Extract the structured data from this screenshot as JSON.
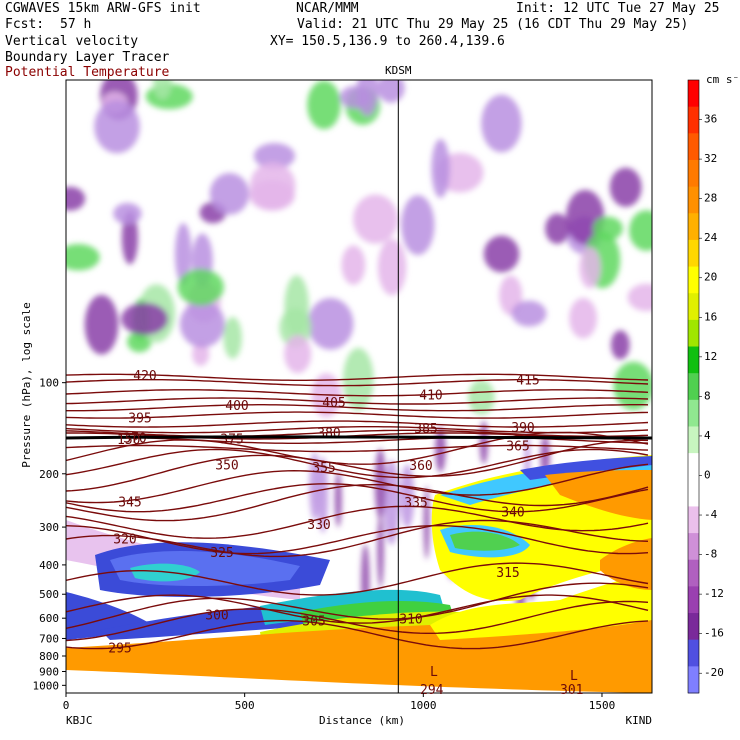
{
  "header": {
    "model": "CGWAVES 15km ARW-GFS init",
    "org": "NCAR/MMM",
    "init": "Init: 12 UTC Tue 27 May 25",
    "fcst_label": "Fcst:",
    "fcst_value": "57 h",
    "valid": "Valid: 21 UTC Thu 29 May 25 (16 CDT Thu 29 May 25)",
    "field1": "Vertical velocity",
    "xy": "XY= 150.5,136.9 to 260.4,139.6",
    "field2": "Boundary Layer Tracer",
    "field3": "Potential Temperature",
    "colors": {
      "field3": "#8b0000"
    }
  },
  "chart_data": {
    "type": "heatmap",
    "title": "Vertical velocity",
    "station_marker": "KDSM",
    "xlabel": "Distance (km)",
    "ylabel": "Pressure (hPa), log scale",
    "x_ticks": [
      "0",
      "500",
      "1000",
      "1500"
    ],
    "x_tick_values": [
      0,
      500,
      1000,
      1500
    ],
    "xlim": [
      0,
      1640
    ],
    "x_end_labels": [
      "KBJC",
      "KIND"
    ],
    "station_x": 930,
    "y_ticks": [
      "100",
      "200",
      "300",
      "400",
      "500",
      "600",
      "700",
      "800",
      "900",
      "1000"
    ],
    "y_tick_values": [
      100,
      200,
      300,
      400,
      500,
      600,
      700,
      800,
      900,
      1000
    ],
    "ylim": [
      1060,
      10
    ],
    "y_scale": "log",
    "colorbar": {
      "unit": "cm s⁻¹",
      "tick_labels": [
        "36",
        "32",
        "28",
        "24",
        "20",
        "16",
        "12",
        "8",
        "4",
        "0",
        "-4",
        "-8",
        "-12",
        "-16",
        "-20"
      ],
      "tick_values": [
        36,
        32,
        28,
        24,
        20,
        16,
        12,
        8,
        4,
        0,
        -4,
        -8,
        -12,
        -16,
        -20
      ],
      "range": [
        -22,
        40
      ],
      "colors": [
        "#7f7fff",
        "#5050e0",
        "#7a2a9a",
        "#9a40b0",
        "#b060c0",
        "#cf90d8",
        "#ebc0ec",
        "#ffffff",
        "#ffffff",
        "#c8f5c0",
        "#90e890",
        "#50d050",
        "#10c010",
        "#a0e600",
        "#e0f000",
        "#ffff00",
        "#ffd700",
        "#ffb000",
        "#ff9000",
        "#ff7a00",
        "#ff5a00",
        "#ff3000",
        "#ff0000"
      ]
    },
    "theta_contours": [
      {
        "label": "295",
        "p": 680
      },
      {
        "label": "300",
        "p": 640
      },
      {
        "label": "305",
        "p": 600
      },
      {
        "label": "310",
        "p": 560
      },
      {
        "label": "315",
        "p": 470
      },
      {
        "label": "320",
        "p": 360
      },
      {
        "label": "325",
        "p": 330
      },
      {
        "label": "330",
        "p": 300
      },
      {
        "label": "335",
        "p": 265
      },
      {
        "label": "340",
        "p": 240
      },
      {
        "label": "345",
        "p": 225
      },
      {
        "label": "350",
        "p": 205
      },
      {
        "label": "355",
        "p": 185
      },
      {
        "label": "360",
        "p": 175
      },
      {
        "label": "365",
        "p": 165
      },
      {
        "label": "370",
        "p": 155
      },
      {
        "label": "375",
        "p": 150
      },
      {
        "label": "380",
        "p": 147
      },
      {
        "label": "385",
        "p": 143
      },
      {
        "label": "390",
        "p": 137
      },
      {
        "label": "395",
        "p": 128
      },
      {
        "label": "400",
        "p": 121
      },
      {
        "label": "405",
        "p": 115
      },
      {
        "label": "410",
        "p": 108
      },
      {
        "label": "415",
        "p": 100
      },
      {
        "label": "420",
        "p": 96
      }
    ],
    "tropopause_label": "150",
    "surface_labels": [
      "294",
      "301"
    ],
    "low_labels": [
      "L",
      "L"
    ]
  }
}
